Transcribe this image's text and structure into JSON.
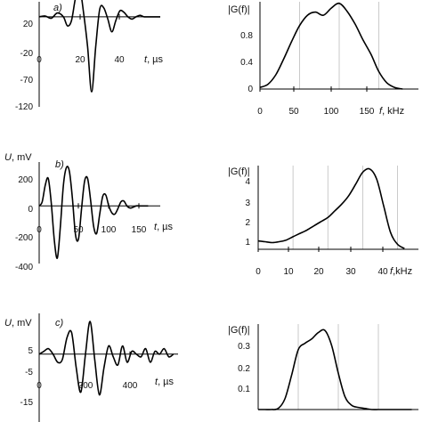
{
  "chart_data": [
    {
      "type": "line",
      "panel_label": "a)",
      "ylabel": "",
      "xlabel": "t, µs",
      "xlim": [
        0,
        60
      ],
      "ylim": [
        -120,
        20
      ],
      "x_ticks": [
        "0",
        "20",
        "40"
      ],
      "y_ticks": [
        "20",
        "-20",
        "-70",
        "-120"
      ],
      "series": [
        {
          "x": [
            0,
            3,
            6,
            9,
            12,
            14,
            16,
            18,
            20,
            22,
            24,
            26,
            28,
            30,
            32,
            34,
            36,
            38,
            40,
            42,
            44,
            46,
            48,
            50,
            52,
            55,
            58,
            60
          ],
          "y": [
            0,
            1,
            -2,
            5,
            0,
            -12,
            -5,
            25,
            40,
            5,
            -40,
            -100,
            -40,
            10,
            12,
            -3,
            -20,
            -5,
            8,
            6,
            0,
            -3,
            0,
            2,
            0,
            0,
            0,
            0
          ]
        }
      ]
    },
    {
      "type": "line",
      "panel_label": "",
      "ylabel": "|G(f)|",
      "xlabel": "f, kHz",
      "xlim": [
        0,
        200
      ],
      "ylim": [
        0,
        1.1
      ],
      "x_ticks": [
        "0",
        "50",
        "100",
        "150"
      ],
      "y_ticks": [
        "0.8",
        "0.4",
        "0"
      ],
      "grid_x": [
        50,
        100,
        150
      ],
      "series": [
        {
          "x": [
            0,
            10,
            20,
            30,
            40,
            50,
            60,
            70,
            80,
            90,
            100,
            110,
            120,
            130,
            140,
            150,
            160,
            170,
            180
          ],
          "y": [
            0.02,
            0.06,
            0.18,
            0.38,
            0.6,
            0.8,
            0.93,
            0.97,
            0.93,
            1.02,
            1.08,
            0.98,
            0.82,
            0.62,
            0.44,
            0.22,
            0.08,
            0.02,
            0
          ]
        }
      ]
    },
    {
      "type": "line",
      "panel_label": "b)",
      "ylabel": "U, mV",
      "xlabel": "t, µs",
      "xlim": [
        0,
        200
      ],
      "ylim": [
        -420,
        320
      ],
      "x_ticks": [
        "0",
        "50",
        "100",
        "150"
      ],
      "y_ticks": [
        "200",
        "0",
        "-200",
        "-400"
      ],
      "series": [
        {
          "x": [
            0,
            5,
            10,
            15,
            20,
            25,
            30,
            35,
            40,
            45,
            50,
            55,
            60,
            65,
            70,
            75,
            80,
            85,
            90,
            95,
            100,
            105,
            110,
            115,
            120,
            125,
            130,
            135,
            140,
            145,
            150,
            155,
            160,
            165,
            170,
            175,
            180
          ],
          "y": [
            0,
            30,
            150,
            200,
            20,
            -250,
            -380,
            -150,
            150,
            280,
            250,
            50,
            -210,
            -240,
            -20,
            180,
            200,
            40,
            -150,
            -200,
            -60,
            70,
            80,
            0,
            -50,
            -60,
            -20,
            30,
            35,
            0,
            -15,
            -10,
            0,
            0,
            0,
            0,
            0
          ]
        }
      ]
    },
    {
      "type": "line",
      "panel_label": "",
      "ylabel": "|G(f)|",
      "xlabel": "f,kHz",
      "xlim": [
        0,
        46
      ],
      "ylim": [
        0,
        5
      ],
      "x_ticks": [
        "0",
        "10",
        "20",
        "30",
        "40"
      ],
      "y_ticks": [
        "4",
        "3",
        "2",
        "1"
      ],
      "grid_x": [
        10,
        20,
        30,
        40
      ],
      "series": [
        {
          "x": [
            0,
            2,
            4,
            6,
            8,
            10,
            12,
            14,
            16,
            18,
            20,
            22,
            24,
            26,
            28,
            30,
            32,
            34,
            36,
            38,
            40,
            42
          ],
          "y": [
            0.5,
            0.45,
            0.4,
            0.45,
            0.55,
            0.75,
            0.95,
            1.15,
            1.4,
            1.65,
            1.9,
            2.3,
            2.7,
            3.2,
            3.9,
            4.6,
            4.8,
            4.2,
            2.6,
            1.0,
            0.3,
            0.05
          ]
        }
      ]
    },
    {
      "type": "line",
      "panel_label": "c)",
      "ylabel": "U, mV",
      "xlabel": "t, µs",
      "xlim": [
        0,
        600
      ],
      "ylim": [
        -25,
        15
      ],
      "x_ticks": [
        "0",
        "200",
        "400"
      ],
      "y_ticks": [
        "5",
        "-5",
        "-15",
        "-25"
      ],
      "series": [
        {
          "x": [
            0,
            20,
            40,
            60,
            80,
            100,
            120,
            140,
            160,
            180,
            200,
            220,
            240,
            260,
            280,
            300,
            320,
            340,
            360,
            380,
            400,
            420,
            440,
            460,
            480,
            500,
            520,
            540,
            560,
            580
          ],
          "y": [
            0,
            1,
            2,
            0,
            -3,
            -2,
            6,
            8,
            -5,
            -14,
            0,
            12,
            -2,
            -15,
            -5,
            3,
            -1,
            -4,
            3,
            -3,
            1,
            0,
            -1,
            2,
            -3,
            1,
            0,
            2,
            -1,
            0
          ]
        }
      ]
    },
    {
      "type": "line",
      "panel_label": "",
      "ylabel": "|G(f)|",
      "xlabel": "",
      "xlim": [
        0,
        12
      ],
      "ylim": [
        0,
        0.4
      ],
      "x_ticks": [],
      "y_ticks": [
        "0.3",
        "0.2",
        "0.1"
      ],
      "grid_x": [
        3,
        6,
        9
      ],
      "series": [
        {
          "x": [
            0,
            0.5,
            1,
            1.5,
            2,
            2.5,
            3,
            3.5,
            4,
            4.5,
            5,
            5.5,
            6,
            6.5,
            7,
            7.5,
            8,
            8.5,
            9,
            9.5,
            10,
            10.5,
            11,
            11.5
          ],
          "y": [
            0,
            0,
            0,
            0.005,
            0.05,
            0.16,
            0.28,
            0.31,
            0.33,
            0.36,
            0.37,
            0.3,
            0.17,
            0.06,
            0.02,
            0.01,
            0.005,
            0,
            0,
            0,
            0,
            0,
            0,
            0
          ]
        }
      ]
    }
  ]
}
